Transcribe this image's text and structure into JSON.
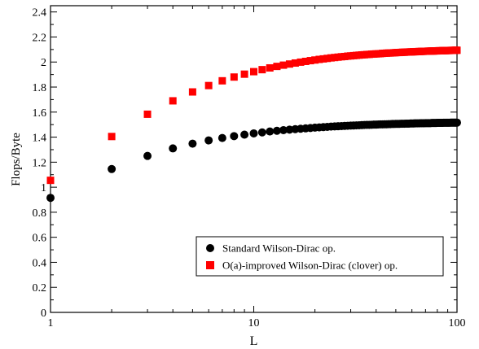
{
  "chart_data": {
    "type": "scatter",
    "xlabel": "L",
    "ylabel": "Flops/Byte",
    "xscale": "log",
    "xlim": [
      1,
      100
    ],
    "ylim": [
      0,
      2.45
    ],
    "x_major_ticks": [
      1,
      10,
      100
    ],
    "x_tick_labels": [
      "1",
      "10",
      "100"
    ],
    "y_ticks": [
      0,
      0.2,
      0.4,
      0.6,
      0.8,
      1,
      1.2,
      1.4,
      1.6,
      1.8,
      2,
      2.2,
      2.4
    ],
    "y_tick_labels": [
      "0",
      "0.2",
      "0.4",
      "0.6",
      "0.8",
      "1",
      "1.2",
      "1.4",
      "1.6",
      "1.8",
      "2",
      "2.2",
      "2.4"
    ],
    "grid": false,
    "legend_position": "bottom-right",
    "series": [
      {
        "name": "Standard Wilson-Dirac op.",
        "marker": "circle",
        "color": "#000000",
        "x": [
          1,
          2,
          3,
          4,
          5,
          6,
          7,
          8,
          9,
          10,
          11,
          12,
          13,
          14,
          15,
          16,
          17,
          18,
          19,
          20,
          21,
          22,
          23,
          24,
          25,
          26,
          27,
          28,
          29,
          30,
          31,
          32,
          33,
          34,
          35,
          36,
          37,
          38,
          39,
          40,
          41,
          42,
          43,
          44,
          45,
          46,
          47,
          48,
          49,
          50,
          51,
          52,
          53,
          54,
          55,
          56,
          57,
          58,
          59,
          60,
          61,
          62,
          63,
          64,
          65,
          66,
          67,
          68,
          69,
          70,
          71,
          72,
          73,
          74,
          75,
          76,
          77,
          78,
          79,
          80,
          81,
          82,
          83,
          84,
          85,
          86,
          87,
          88,
          89,
          90,
          91,
          92,
          93,
          94,
          95,
          96,
          97,
          98,
          99,
          100
        ],
        "values": [
          0.915,
          1.145,
          1.25,
          1.31,
          1.348,
          1.374,
          1.393,
          1.408,
          1.42,
          1.43,
          1.438,
          1.445,
          1.451,
          1.456,
          1.46,
          1.464,
          1.467,
          1.47,
          1.473,
          1.476,
          1.478,
          1.48,
          1.482,
          1.484,
          1.486,
          1.487,
          1.488,
          1.49,
          1.491,
          1.492,
          1.493,
          1.494,
          1.495,
          1.496,
          1.497,
          1.498,
          1.498,
          1.499,
          1.5,
          1.5,
          1.501,
          1.502,
          1.502,
          1.503,
          1.503,
          1.504,
          1.504,
          1.505,
          1.505,
          1.506,
          1.506,
          1.506,
          1.507,
          1.507,
          1.507,
          1.508,
          1.508,
          1.508,
          1.509,
          1.509,
          1.509,
          1.51,
          1.51,
          1.51,
          1.51,
          1.511,
          1.511,
          1.511,
          1.511,
          1.512,
          1.512,
          1.512,
          1.512,
          1.512,
          1.513,
          1.513,
          1.513,
          1.513,
          1.513,
          1.514,
          1.514,
          1.514,
          1.514,
          1.514,
          1.514,
          1.515,
          1.515,
          1.515,
          1.515,
          1.515,
          1.515,
          1.515,
          1.516,
          1.516,
          1.516,
          1.516,
          1.516,
          1.516,
          1.516,
          1.516
        ]
      },
      {
        "name": "O(a)-improved Wilson-Dirac (clover) op.",
        "marker": "square",
        "color": "#ff0000",
        "x": [
          1,
          2,
          3,
          4,
          5,
          6,
          7,
          8,
          9,
          10,
          11,
          12,
          13,
          14,
          15,
          16,
          17,
          18,
          19,
          20,
          21,
          22,
          23,
          24,
          25,
          26,
          27,
          28,
          29,
          30,
          31,
          32,
          33,
          34,
          35,
          36,
          37,
          38,
          39,
          40,
          41,
          42,
          43,
          44,
          45,
          46,
          47,
          48,
          49,
          50,
          51,
          52,
          53,
          54,
          55,
          56,
          57,
          58,
          59,
          60,
          61,
          62,
          63,
          64,
          65,
          66,
          67,
          68,
          69,
          70,
          71,
          72,
          73,
          74,
          75,
          76,
          77,
          78,
          79,
          80,
          81,
          82,
          83,
          84,
          85,
          86,
          87,
          88,
          89,
          90,
          91,
          92,
          93,
          94,
          95,
          96,
          97,
          98,
          99,
          100
        ],
        "values": [
          1.055,
          1.405,
          1.583,
          1.69,
          1.761,
          1.812,
          1.85,
          1.88,
          1.903,
          1.923,
          1.939,
          1.953,
          1.965,
          1.975,
          1.984,
          1.992,
          1.999,
          2.005,
          2.011,
          2.016,
          2.021,
          2.025,
          2.029,
          2.033,
          2.036,
          2.039,
          2.042,
          2.044,
          2.047,
          2.049,
          2.051,
          2.053,
          2.055,
          2.057,
          2.058,
          2.06,
          2.061,
          2.063,
          2.064,
          2.065,
          2.066,
          2.067,
          2.069,
          2.07,
          2.071,
          2.072,
          2.072,
          2.073,
          2.074,
          2.075,
          2.076,
          2.076,
          2.077,
          2.078,
          2.078,
          2.079,
          2.08,
          2.08,
          2.081,
          2.081,
          2.082,
          2.082,
          2.083,
          2.083,
          2.084,
          2.084,
          2.085,
          2.085,
          2.086,
          2.086,
          2.086,
          2.087,
          2.087,
          2.087,
          2.088,
          2.088,
          2.088,
          2.089,
          2.089,
          2.089,
          2.09,
          2.09,
          2.09,
          2.09,
          2.091,
          2.091,
          2.091,
          2.091,
          2.092,
          2.092,
          2.092,
          2.092,
          2.093,
          2.093,
          2.093,
          2.093,
          2.093,
          2.094,
          2.094,
          2.094
        ]
      }
    ]
  }
}
